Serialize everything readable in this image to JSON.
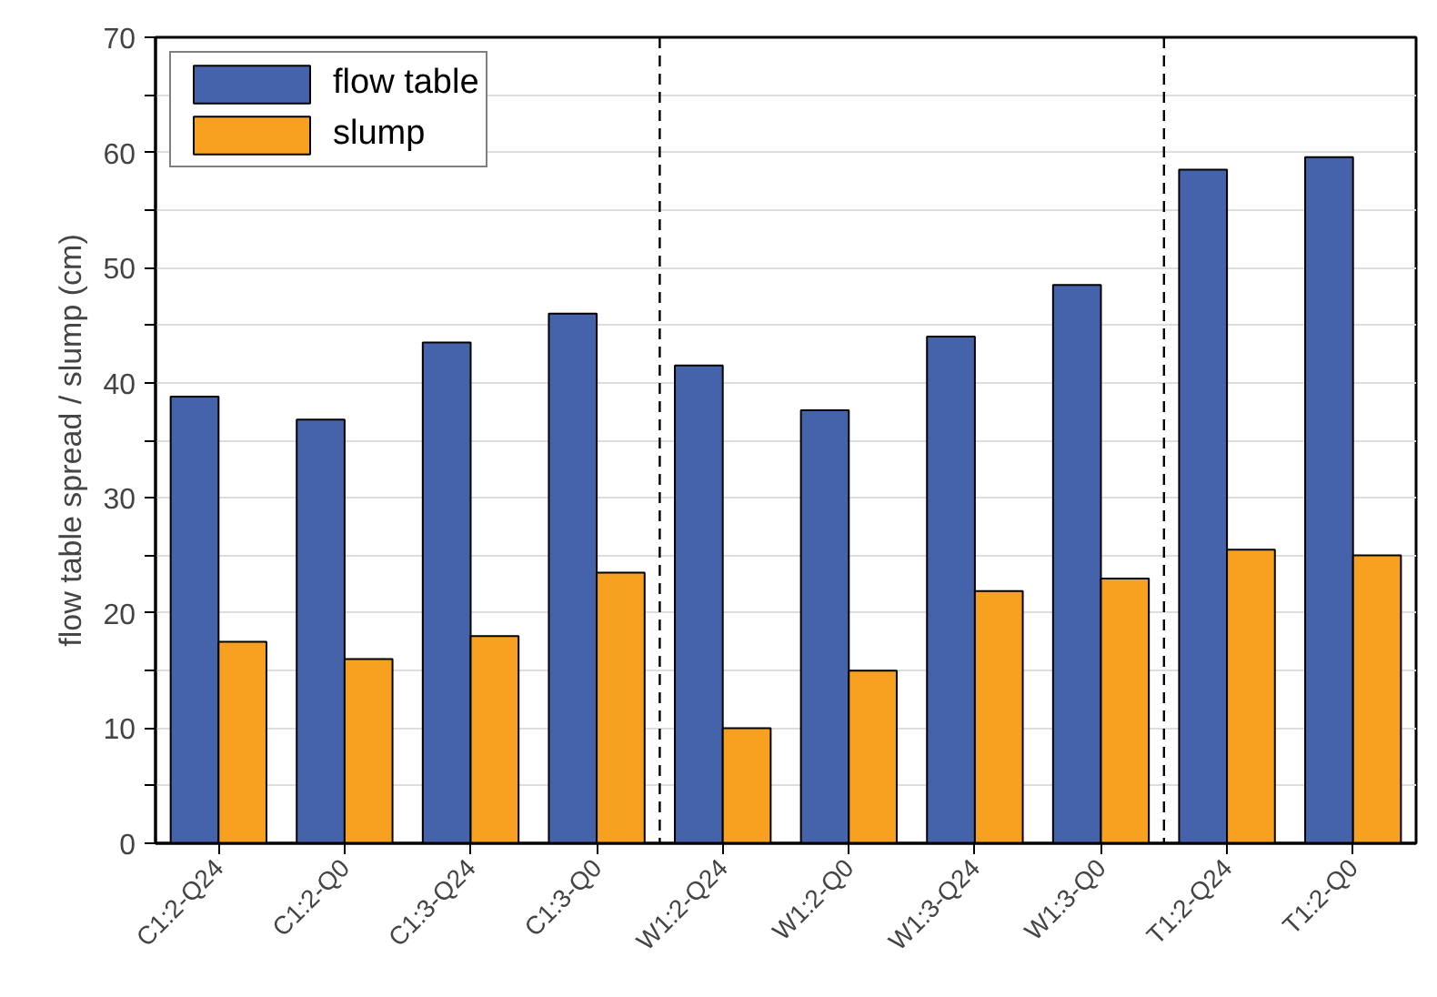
{
  "chart_data": {
    "type": "bar",
    "ylabel": "flow table spread / slump (cm)",
    "categories": [
      "C1:2-Q24",
      "C1:2-Q0",
      "C1:3-Q24",
      "C1:3-Q0",
      "W1:2-Q24",
      "W1:2-Q0",
      "W1:3-Q24",
      "W1:3-Q0",
      "T1:2-Q24",
      "T1:2-Q0"
    ],
    "series": [
      {
        "name": "flow table",
        "color": "#4463aa",
        "values": [
          38.8,
          36.8,
          43.5,
          46.0,
          41.5,
          37.6,
          44.0,
          48.5,
          58.5,
          59.6
        ]
      },
      {
        "name": "slump",
        "color": "#f8a01f",
        "values": [
          17.5,
          16.0,
          18.0,
          23.5,
          10.0,
          15.0,
          21.9,
          23.0,
          25.5,
          25.0
        ]
      }
    ],
    "ylim": [
      0,
      70
    ],
    "yticks": [
      0,
      {
        "value": 5,
        "label": null
      },
      10,
      {
        "value": 15,
        "label": null
      },
      20,
      {
        "value": 25,
        "label": null
      },
      30,
      {
        "value": 35,
        "label": null
      },
      40,
      {
        "value": 45,
        "label": null
      },
      50,
      {
        "value": 55,
        "label": null
      },
      60,
      {
        "value": 65,
        "label": null
      },
      70
    ],
    "grid": "y",
    "legend": "top left"
  }
}
